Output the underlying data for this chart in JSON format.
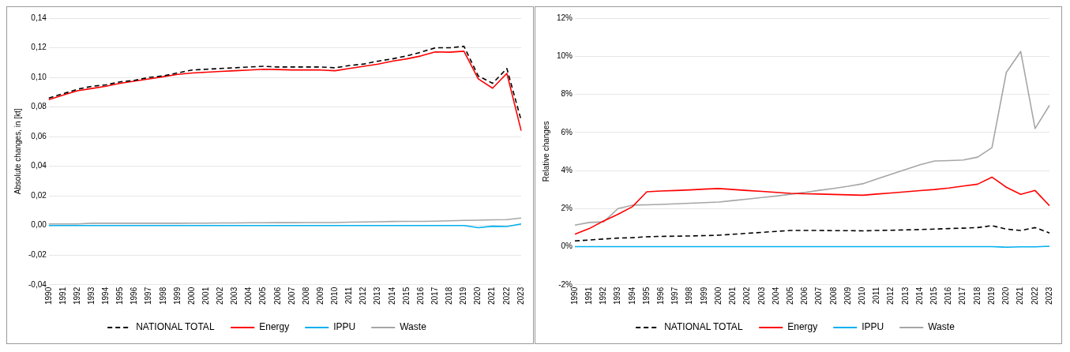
{
  "chart_data": [
    {
      "type": "line",
      "ylabel": "Absolute changes, in [kt]",
      "categories": [
        "1990",
        "1991",
        "1992",
        "1993",
        "1994",
        "1995",
        "1996",
        "1997",
        "1998",
        "1999",
        "2000",
        "2001",
        "2002",
        "2003",
        "2004",
        "2005",
        "2006",
        "2007",
        "2008",
        "2009",
        "2010",
        "2011",
        "2012",
        "2013",
        "2014",
        "2015",
        "2016",
        "2017",
        "2018",
        "2019",
        "2020",
        "2021",
        "2022",
        "2023"
      ],
      "series": [
        {
          "name": "NATIONAL TOTAL",
          "color": "#000000",
          "line_style": "dashed",
          "values": [
            0.086,
            0.089,
            0.092,
            0.094,
            0.095,
            0.097,
            0.098,
            0.1,
            0.101,
            0.103,
            0.105,
            0.1055,
            0.106,
            0.1065,
            0.107,
            0.1075,
            0.107,
            0.107,
            0.107,
            0.107,
            0.1065,
            0.108,
            0.109,
            0.111,
            0.1125,
            0.1145,
            0.117,
            0.12,
            0.12,
            0.121,
            0.101,
            0.096,
            0.106,
            0.071
          ]
        },
        {
          "name": "Energy",
          "color": "#ff0000",
          "line_style": "solid",
          "values": [
            0.085,
            0.088,
            0.091,
            0.0925,
            0.094,
            0.096,
            0.0975,
            0.099,
            0.1005,
            0.102,
            0.103,
            0.1035,
            0.104,
            0.1045,
            0.105,
            0.1055,
            0.1053,
            0.105,
            0.105,
            0.105,
            0.1045,
            0.106,
            0.1075,
            0.109,
            0.111,
            0.1125,
            0.1145,
            0.1172,
            0.117,
            0.1177,
            0.099,
            0.0927,
            0.1027,
            0.064
          ]
        },
        {
          "name": "IPPU",
          "color": "#00b0f0",
          "line_style": "solid",
          "values": [
            0,
            0,
            0,
            0,
            0,
            0,
            0,
            0,
            0,
            0,
            0,
            0,
            0,
            0,
            0,
            0,
            0,
            0,
            0,
            0,
            0,
            0,
            0,
            0,
            0,
            0,
            0,
            0,
            0,
            0,
            -0.0015,
            -0.0005,
            -0.0007,
            0.001
          ]
        },
        {
          "name": "Waste",
          "color": "#a6a6a6",
          "line_style": "solid",
          "values": [
            0.001,
            0.001,
            0.001,
            0.0015,
            0.0015,
            0.0015,
            0.0015,
            0.0015,
            0.0015,
            0.0015,
            0.0016,
            0.0016,
            0.0017,
            0.0017,
            0.0018,
            0.0018,
            0.0019,
            0.0019,
            0.002,
            0.002,
            0.002,
            0.0022,
            0.0024,
            0.0025,
            0.0027,
            0.0028,
            0.0028,
            0.0029,
            0.0032,
            0.0034,
            0.0036,
            0.0038,
            0.004,
            0.005
          ]
        }
      ],
      "ylim": [
        -0.04,
        0.14
      ],
      "yticks": [
        {
          "value": -0.04,
          "label": "-0,04"
        },
        {
          "value": -0.02,
          "label": "-0,02"
        },
        {
          "value": 0,
          "label": "0,00"
        },
        {
          "value": 0.02,
          "label": "0,02"
        },
        {
          "value": 0.04,
          "label": "0,04"
        },
        {
          "value": 0.06,
          "label": "0,06"
        },
        {
          "value": 0.08,
          "label": "0,08"
        },
        {
          "value": 0.1,
          "label": "0,10"
        },
        {
          "value": 0.12,
          "label": "0,12"
        },
        {
          "value": 0.14,
          "label": "0,14"
        }
      ],
      "grid": "y",
      "legend": "bottom",
      "marker": "none"
    },
    {
      "type": "line",
      "ylabel": "Relative changes",
      "categories": [
        "1990",
        "1991",
        "1992",
        "1993",
        "1994",
        "1995",
        "1996",
        "1997",
        "1998",
        "1999",
        "2000",
        "2001",
        "2002",
        "2003",
        "2004",
        "2005",
        "2006",
        "2007",
        "2008",
        "2009",
        "2010",
        "2011",
        "2012",
        "2013",
        "2014",
        "2015",
        "2016",
        "2017",
        "2018",
        "2019",
        "2020",
        "2021",
        "2022",
        "2023"
      ],
      "series": [
        {
          "name": "NATIONAL TOTAL",
          "color": "#000000",
          "line_style": "dashed",
          "values": [
            0.3,
            0.35,
            0.4,
            0.45,
            0.47,
            0.52,
            0.54,
            0.55,
            0.56,
            0.58,
            0.6,
            0.65,
            0.7,
            0.75,
            0.8,
            0.85,
            0.85,
            0.85,
            0.84,
            0.84,
            0.83,
            0.85,
            0.86,
            0.88,
            0.9,
            0.92,
            0.95,
            0.97,
            1.0,
            1.1,
            0.92,
            0.85,
            1.0,
            0.72
          ]
        },
        {
          "name": "Energy",
          "color": "#ff0000",
          "line_style": "solid",
          "values": [
            0.65,
            0.95,
            1.35,
            1.7,
            2.1,
            2.88,
            2.92,
            2.95,
            2.98,
            3.02,
            3.05,
            3.0,
            2.95,
            2.9,
            2.85,
            2.8,
            2.78,
            2.76,
            2.74,
            2.72,
            2.7,
            2.76,
            2.82,
            2.88,
            2.94,
            3.0,
            3.08,
            3.18,
            3.28,
            3.65,
            3.12,
            2.75,
            2.95,
            2.15
          ]
        },
        {
          "name": "IPPU",
          "color": "#00b0f0",
          "line_style": "solid",
          "values": [
            0,
            0,
            0,
            0,
            0,
            0,
            0,
            0,
            0,
            0,
            0,
            0,
            0,
            0,
            0,
            0,
            0,
            0,
            0,
            0,
            0,
            0,
            0,
            0,
            0,
            0,
            0,
            0,
            0,
            0,
            -0.03,
            -0.01,
            -0.01,
            0.02
          ]
        },
        {
          "name": "Waste",
          "color": "#a6a6a6",
          "line_style": "solid",
          "values": [
            1.13,
            1.27,
            1.3,
            2.0,
            2.18,
            2.2,
            2.22,
            2.25,
            2.28,
            2.31,
            2.34,
            2.42,
            2.5,
            2.58,
            2.66,
            2.75,
            2.85,
            2.96,
            3.06,
            3.17,
            3.3,
            3.55,
            3.8,
            4.05,
            4.3,
            4.5,
            4.52,
            4.55,
            4.7,
            5.2,
            9.15,
            10.25,
            6.2,
            7.42
          ]
        }
      ],
      "ylim": [
        -2,
        12
      ],
      "yticks": [
        {
          "value": -2,
          "label": "-2%"
        },
        {
          "value": 0,
          "label": "0%"
        },
        {
          "value": 2,
          "label": "2%"
        },
        {
          "value": 4,
          "label": "4%"
        },
        {
          "value": 6,
          "label": "6%"
        },
        {
          "value": 8,
          "label": "8%"
        },
        {
          "value": 10,
          "label": "10%"
        },
        {
          "value": 12,
          "label": "12%"
        }
      ],
      "grid": "y",
      "legend": "bottom",
      "marker": "none"
    }
  ]
}
